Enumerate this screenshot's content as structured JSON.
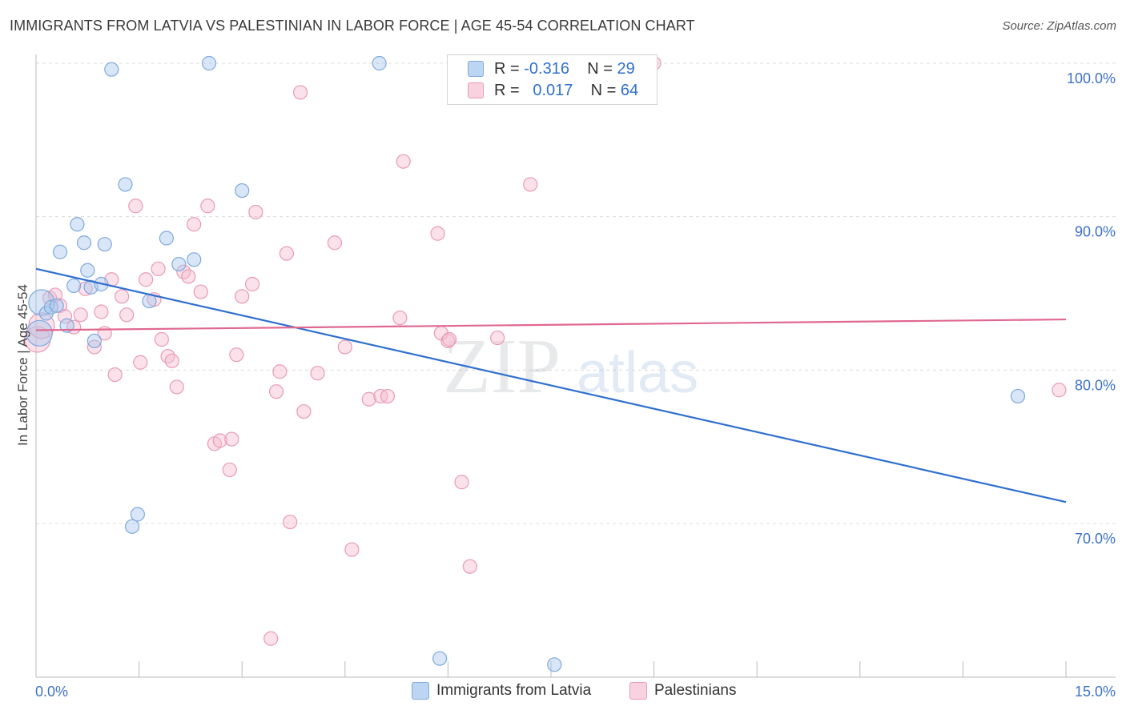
{
  "header": {
    "title": "IMMIGRANTS FROM LATVIA VS PALESTINIAN IN LABOR FORCE | AGE 45-54 CORRELATION CHART",
    "source": "Source: ZipAtlas.com"
  },
  "watermark": {
    "zip": "ZIP",
    "atlas": "atlas"
  },
  "legend_top": [
    {
      "r_label": "R =",
      "r_value": "-0.316",
      "n_label": "N =",
      "n_value": "29",
      "color": "#a9c8ee"
    },
    {
      "r_label": "R =",
      "r_value": "0.017",
      "n_label": "N =",
      "n_value": "64",
      "color": "#f5bcd0"
    }
  ],
  "legend_bottom": [
    {
      "label": "Immigrants from Latvia",
      "color": "#a9c8ee"
    },
    {
      "label": "Palestinians",
      "color": "#f5bcd0"
    }
  ],
  "chart_data": {
    "type": "scatter",
    "title": "IMMIGRANTS FROM LATVIA VS PALESTINIAN IN LABOR FORCE | AGE 45-54 CORRELATION CHART",
    "xlabel": "",
    "ylabel": "In Labor Force | Age 45-54",
    "xlim": [
      0,
      15
    ],
    "ylim": [
      61,
      101
    ],
    "x_tick_labels": [
      "0.0%",
      "15.0%"
    ],
    "y_ticks": [
      70,
      80,
      90,
      100
    ],
    "y_tick_labels": [
      "70.0%",
      "80.0%",
      "90.0%",
      "100.0%"
    ],
    "grid": true,
    "legend": "top-center",
    "series": [
      {
        "name": "Immigrants from Latvia",
        "color": "#a9c8ee",
        "edge": "#7fa9dd",
        "line_color": "#2f6fd0",
        "trend": [
          [
            0,
            86.6
          ],
          [
            15,
            71.4
          ]
        ],
        "points": [
          [
            0.05,
            82.4
          ],
          [
            0.08,
            84.4
          ],
          [
            0.15,
            83.7
          ],
          [
            0.22,
            84.1
          ],
          [
            0.3,
            84.2
          ],
          [
            0.35,
            87.7
          ],
          [
            0.45,
            82.9
          ],
          [
            0.55,
            85.5
          ],
          [
            0.6,
            89.5
          ],
          [
            0.7,
            88.3
          ],
          [
            0.75,
            86.5
          ],
          [
            0.8,
            85.4
          ],
          [
            0.85,
            81.9
          ],
          [
            0.95,
            85.6
          ],
          [
            1.0,
            88.2
          ],
          [
            1.1,
            99.6
          ],
          [
            1.3,
            92.1
          ],
          [
            1.4,
            69.8
          ],
          [
            1.48,
            70.6
          ],
          [
            1.65,
            84.5
          ],
          [
            1.9,
            88.6
          ],
          [
            2.08,
            86.9
          ],
          [
            2.3,
            87.2
          ],
          [
            2.52,
            100.0
          ],
          [
            3.0,
            91.7
          ],
          [
            5.0,
            100.0
          ],
          [
            5.88,
            61.2
          ],
          [
            7.55,
            60.8
          ],
          [
            14.3,
            78.3
          ]
        ]
      },
      {
        "name": "Palestinians",
        "color": "#f5bcd0",
        "edge": "#e99ab6",
        "line_color": "#e0688f",
        "trend": [
          [
            0,
            82.6
          ],
          [
            15,
            83.3
          ]
        ],
        "points": [
          [
            0.02,
            82.0
          ],
          [
            0.08,
            82.9
          ],
          [
            0.2,
            84.7
          ],
          [
            0.28,
            84.9
          ],
          [
            0.35,
            84.2
          ],
          [
            0.42,
            83.5
          ],
          [
            0.55,
            82.8
          ],
          [
            0.65,
            83.6
          ],
          [
            0.72,
            85.3
          ],
          [
            0.85,
            81.5
          ],
          [
            0.95,
            83.8
          ],
          [
            1.0,
            82.4
          ],
          [
            1.1,
            85.9
          ],
          [
            1.15,
            79.7
          ],
          [
            1.25,
            84.8
          ],
          [
            1.32,
            83.6
          ],
          [
            1.45,
            90.7
          ],
          [
            1.52,
            80.5
          ],
          [
            1.6,
            85.9
          ],
          [
            1.72,
            84.6
          ],
          [
            1.78,
            86.6
          ],
          [
            1.83,
            82.0
          ],
          [
            1.92,
            80.9
          ],
          [
            1.98,
            80.6
          ],
          [
            2.05,
            78.9
          ],
          [
            2.15,
            86.4
          ],
          [
            2.22,
            86.1
          ],
          [
            2.3,
            89.5
          ],
          [
            2.4,
            85.1
          ],
          [
            2.5,
            90.7
          ],
          [
            2.6,
            75.2
          ],
          [
            2.68,
            75.4
          ],
          [
            2.82,
            73.5
          ],
          [
            2.85,
            75.5
          ],
          [
            2.92,
            81.0
          ],
          [
            3.0,
            84.8
          ],
          [
            3.15,
            85.6
          ],
          [
            3.2,
            90.3
          ],
          [
            3.42,
            62.5
          ],
          [
            3.5,
            78.6
          ],
          [
            3.55,
            79.9
          ],
          [
            3.65,
            87.6
          ],
          [
            3.7,
            70.1
          ],
          [
            3.85,
            98.1
          ],
          [
            3.9,
            77.3
          ],
          [
            4.1,
            79.8
          ],
          [
            4.35,
            88.3
          ],
          [
            4.5,
            81.5
          ],
          [
            4.6,
            68.3
          ],
          [
            4.85,
            78.1
          ],
          [
            5.02,
            78.3
          ],
          [
            5.12,
            78.3
          ],
          [
            5.3,
            83.4
          ],
          [
            5.35,
            93.6
          ],
          [
            5.85,
            88.9
          ],
          [
            5.9,
            82.4
          ],
          [
            6.0,
            81.9
          ],
          [
            6.02,
            82.0
          ],
          [
            6.2,
            72.7
          ],
          [
            6.32,
            67.2
          ],
          [
            6.72,
            82.1
          ],
          [
            7.2,
            92.1
          ],
          [
            9.0,
            100.0
          ],
          [
            14.9,
            78.7
          ]
        ]
      }
    ]
  }
}
